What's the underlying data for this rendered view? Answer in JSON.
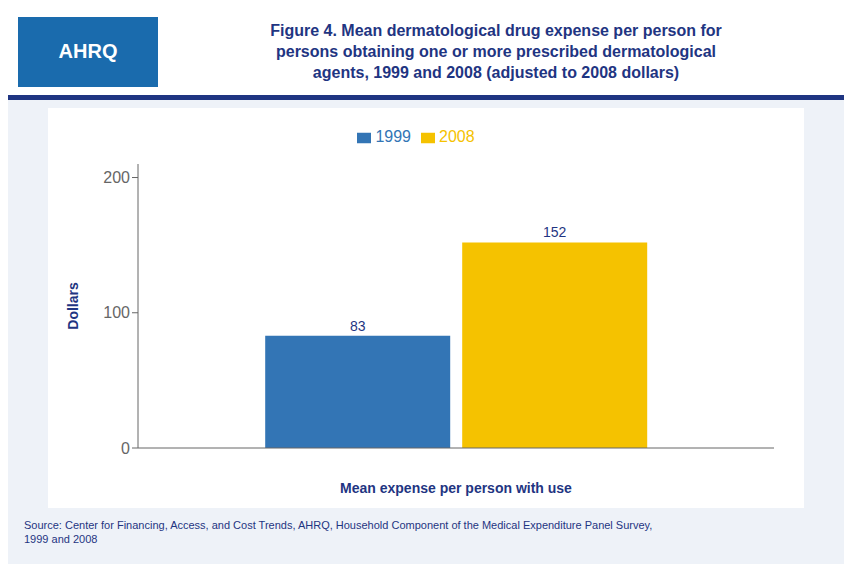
{
  "chart_data": {
    "type": "bar",
    "title": "Figure 4. Mean dermatological drug expense per person for\npersons obtaining one or more prescribed dermatological\nagents, 1999 and 2008 (adjusted to 2008 dollars)",
    "categories": [
      null
    ],
    "series": [
      {
        "name": "1999",
        "color": "#3375B5",
        "values": [
          83
        ]
      },
      {
        "name": "2008",
        "color": "#F5C200",
        "values": [
          152
        ]
      }
    ],
    "xlabel": "Mean expense per person with use",
    "ylabel": "Dollars",
    "ylim": [
      0,
      210
    ],
    "yticks": [
      0,
      100,
      200
    ],
    "grid": false,
    "legend": "top",
    "data_labels": true,
    "tick_labels": "y",
    "annotations": [
      "AHRQ",
      "Source: Center for Financing, Access, and Cost Trends, AHRQ, Household Component of the Medical Expenditure Panel Survey,\n1999 and 2008"
    ]
  }
}
